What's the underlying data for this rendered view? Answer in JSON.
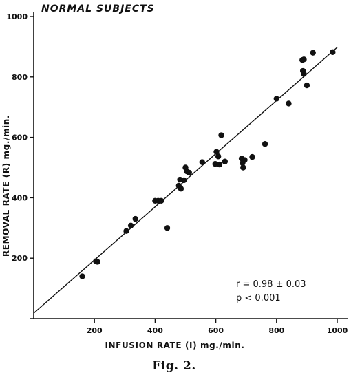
{
  "chart_data": {
    "type": "scatter",
    "title": "NORMAL SUBJECTS",
    "xlabel": "INFUSION RATE (I) mg./min.",
    "ylabel": "REMOVAL RATE (R) mg./min.",
    "caption": "Fig. 2.",
    "xlim": [
      0,
      1000
    ],
    "ylim": [
      0,
      1000
    ],
    "x_ticks": [
      200,
      400,
      600,
      800,
      1000
    ],
    "y_ticks": [
      200,
      400,
      600,
      800,
      1000
    ],
    "x_tick_labels": [
      "200",
      "400",
      "600",
      "800",
      "1000"
    ],
    "y_tick_labels": [
      "200",
      "400",
      "600",
      "800",
      "1000"
    ],
    "points": [
      {
        "x": 160,
        "y": 140
      },
      {
        "x": 205,
        "y": 190
      },
      {
        "x": 210,
        "y": 188
      },
      {
        "x": 305,
        "y": 290
      },
      {
        "x": 320,
        "y": 308
      },
      {
        "x": 335,
        "y": 330
      },
      {
        "x": 400,
        "y": 390
      },
      {
        "x": 410,
        "y": 390
      },
      {
        "x": 420,
        "y": 390
      },
      {
        "x": 440,
        "y": 300
      },
      {
        "x": 478,
        "y": 440
      },
      {
        "x": 482,
        "y": 460
      },
      {
        "x": 485,
        "y": 430
      },
      {
        "x": 495,
        "y": 458
      },
      {
        "x": 500,
        "y": 500
      },
      {
        "x": 505,
        "y": 487
      },
      {
        "x": 512,
        "y": 483
      },
      {
        "x": 555,
        "y": 518
      },
      {
        "x": 598,
        "y": 512
      },
      {
        "x": 602,
        "y": 552
      },
      {
        "x": 608,
        "y": 537
      },
      {
        "x": 612,
        "y": 510
      },
      {
        "x": 618,
        "y": 607
      },
      {
        "x": 630,
        "y": 520
      },
      {
        "x": 685,
        "y": 530
      },
      {
        "x": 688,
        "y": 515
      },
      {
        "x": 690,
        "y": 500
      },
      {
        "x": 695,
        "y": 525
      },
      {
        "x": 720,
        "y": 535
      },
      {
        "x": 762,
        "y": 578
      },
      {
        "x": 800,
        "y": 728
      },
      {
        "x": 840,
        "y": 712
      },
      {
        "x": 885,
        "y": 856
      },
      {
        "x": 887,
        "y": 820
      },
      {
        "x": 890,
        "y": 810
      },
      {
        "x": 890,
        "y": 858
      },
      {
        "x": 900,
        "y": 772
      },
      {
        "x": 920,
        "y": 880
      },
      {
        "x": 985,
        "y": 882
      }
    ],
    "fit_line": {
      "x": [
        0,
        1000
      ],
      "y": [
        18,
        898
      ]
    },
    "annotations": [
      "r = 0.98 ± 0.03",
      "p < 0.001"
    ],
    "grid": false,
    "legend": "none",
    "point_color": "#111111"
  }
}
